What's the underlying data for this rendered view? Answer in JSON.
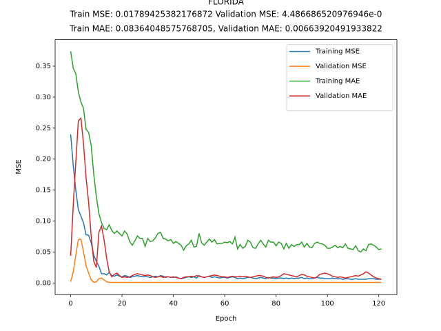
{
  "chart_data": {
    "type": "line",
    "title": "FLORIDA",
    "subtitle": [
      "Train MSE: 0.01789425382176872 Validation MSE: 4.486686520976946e-0",
      "Train MAE: 0.08364048575768705, Validation MAE: 0.00663920491933822"
    ],
    "xlabel": "Epoch",
    "ylabel": "MSE",
    "x": [
      0,
      1,
      2,
      3,
      4,
      5,
      6,
      7,
      8,
      9,
      10,
      11,
      12,
      13,
      14,
      15,
      16,
      17,
      18,
      19,
      20,
      21,
      22,
      23,
      24,
      25,
      26,
      27,
      28,
      29,
      30,
      31,
      32,
      33,
      34,
      35,
      36,
      37,
      38,
      39,
      40,
      41,
      42,
      43,
      44,
      45,
      46,
      47,
      48,
      49,
      50,
      51,
      52,
      53,
      54,
      55,
      56,
      57,
      58,
      59,
      60,
      61,
      62,
      63,
      64,
      65,
      66,
      67,
      68,
      69,
      70,
      71,
      72,
      73,
      74,
      75,
      76,
      77,
      78,
      79,
      80,
      81,
      82,
      83,
      84,
      85,
      86,
      87,
      88,
      89,
      90,
      91,
      92,
      93,
      94,
      95,
      96,
      97,
      98,
      99,
      100,
      101,
      102,
      103,
      104,
      105,
      106,
      107,
      108,
      109,
      110,
      111,
      112,
      113,
      114,
      115,
      116,
      117,
      118,
      119,
      120,
      121
    ],
    "series": [
      {
        "name": "Training MSE",
        "color": "#1f77b4",
        "values": [
          0.24,
          0.19,
          0.15,
          0.118,
          0.108,
          0.097,
          0.078,
          0.077,
          0.065,
          0.045,
          0.035,
          0.027,
          0.015,
          0.015,
          0.013,
          0.017,
          0.012,
          0.011,
          0.013,
          0.011,
          0.01,
          0.012,
          0.011,
          0.009,
          0.01,
          0.011,
          0.012,
          0.011,
          0.01,
          0.011,
          0.01,
          0.009,
          0.01,
          0.011,
          0.01,
          0.012,
          0.011,
          0.009,
          0.01,
          0.009,
          0.009,
          0.01,
          0.008,
          0.007,
          0.008,
          0.009,
          0.01,
          0.009,
          0.01,
          0.008,
          0.012,
          0.01,
          0.009,
          0.01,
          0.011,
          0.009,
          0.01,
          0.009,
          0.008,
          0.009,
          0.009,
          0.008,
          0.009,
          0.01,
          0.009,
          0.007,
          0.008,
          0.007,
          0.008,
          0.009,
          0.009,
          0.008,
          0.007,
          0.008,
          0.009,
          0.008,
          0.007,
          0.009,
          0.008,
          0.008,
          0.007,
          0.008,
          0.008,
          0.007,
          0.008,
          0.007,
          0.008,
          0.007,
          0.008,
          0.008,
          0.009,
          0.007,
          0.008,
          0.007,
          0.007,
          0.008,
          0.009,
          0.008,
          0.008,
          0.007,
          0.007,
          0.007,
          0.008,
          0.007,
          0.007,
          0.007,
          0.006,
          0.007,
          0.007,
          0.006,
          0.006,
          0.007,
          0.006,
          0.006,
          0.006,
          0.006,
          0.007,
          0.007,
          0.007,
          0.006,
          0.006,
          0.006
        ]
      },
      {
        "name": "Validation MSE",
        "color": "#ff7f0e",
        "values": [
          0.002,
          0.018,
          0.045,
          0.07,
          0.071,
          0.05,
          0.028,
          0.016,
          0.005,
          0.001,
          0.002,
          0.007,
          0.008,
          0.005,
          0.002,
          0.001,
          0.001,
          0.001,
          0.001,
          0.001,
          0.001,
          0.001,
          0.001,
          0.001,
          0.001,
          0.001,
          0.001,
          0.001,
          0.001,
          0.001,
          0.001,
          0.001,
          0.001,
          0.001,
          0.001,
          0.001,
          0.001,
          0.001,
          0.001,
          0.001,
          0.001,
          0.001,
          0.001,
          0.001,
          0.001,
          0.001,
          0.001,
          0.001,
          0.001,
          0.001,
          0.001,
          0.001,
          0.001,
          0.001,
          0.001,
          0.001,
          0.001,
          0.001,
          0.001,
          0.001,
          0.001,
          0.001,
          0.001,
          0.001,
          0.001,
          0.001,
          0.001,
          0.001,
          0.001,
          0.001,
          0.001,
          0.001,
          0.001,
          0.001,
          0.001,
          0.001,
          0.001,
          0.001,
          0.001,
          0.001,
          0.001,
          0.001,
          0.001,
          0.001,
          0.001,
          0.001,
          0.001,
          0.001,
          0.001,
          0.001,
          0.001,
          0.001,
          0.001,
          0.001,
          0.001,
          0.001,
          0.001,
          0.001,
          0.001,
          0.001,
          0.001,
          0.001,
          0.001,
          0.001,
          0.001,
          0.001,
          0.001,
          0.001,
          0.001,
          0.001,
          0.001,
          0.001,
          0.001,
          0.001,
          0.001,
          0.001,
          0.001,
          0.001,
          0.001,
          0.001,
          0.001,
          0.001
        ]
      },
      {
        "name": "Training MAE",
        "color": "#2ca02c",
        "values": [
          0.374,
          0.347,
          0.338,
          0.308,
          0.292,
          0.282,
          0.248,
          0.243,
          0.222,
          0.175,
          0.14,
          0.112,
          0.098,
          0.088,
          0.086,
          0.094,
          0.085,
          0.08,
          0.084,
          0.08,
          0.076,
          0.084,
          0.079,
          0.067,
          0.061,
          0.068,
          0.076,
          0.072,
          0.072,
          0.059,
          0.072,
          0.067,
          0.068,
          0.073,
          0.08,
          0.082,
          0.072,
          0.071,
          0.068,
          0.07,
          0.064,
          0.067,
          0.064,
          0.061,
          0.053,
          0.06,
          0.063,
          0.069,
          0.058,
          0.059,
          0.08,
          0.065,
          0.061,
          0.066,
          0.071,
          0.066,
          0.07,
          0.063,
          0.064,
          0.064,
          0.066,
          0.065,
          0.067,
          0.063,
          0.074,
          0.055,
          0.062,
          0.056,
          0.059,
          0.069,
          0.066,
          0.057,
          0.056,
          0.063,
          0.069,
          0.063,
          0.058,
          0.069,
          0.066,
          0.066,
          0.06,
          0.066,
          0.064,
          0.055,
          0.064,
          0.056,
          0.062,
          0.059,
          0.062,
          0.062,
          0.066,
          0.058,
          0.064,
          0.058,
          0.057,
          0.064,
          0.066,
          0.064,
          0.063,
          0.061,
          0.056,
          0.056,
          0.058,
          0.061,
          0.057,
          0.059,
          0.057,
          0.063,
          0.056,
          0.055,
          0.054,
          0.06,
          0.052,
          0.05,
          0.055,
          0.052,
          0.062,
          0.063,
          0.061,
          0.058,
          0.054,
          0.055
        ]
      },
      {
        "name": "Validation MAE",
        "color": "#d62728",
        "values": [
          0.044,
          0.125,
          0.195,
          0.262,
          0.266,
          0.225,
          0.17,
          0.13,
          0.075,
          0.035,
          0.025,
          0.082,
          0.092,
          0.07,
          0.04,
          0.018,
          0.01,
          0.014,
          0.016,
          0.012,
          0.009,
          0.01,
          0.009,
          0.01,
          0.012,
          0.014,
          0.015,
          0.014,
          0.013,
          0.012,
          0.013,
          0.012,
          0.01,
          0.009,
          0.01,
          0.011,
          0.009,
          0.01,
          0.01,
          0.009,
          0.01,
          0.009,
          0.008,
          0.007,
          0.009,
          0.01,
          0.01,
          0.011,
          0.01,
          0.012,
          0.011,
          0.01,
          0.009,
          0.01,
          0.011,
          0.012,
          0.013,
          0.012,
          0.011,
          0.01,
          0.01,
          0.009,
          0.01,
          0.011,
          0.01,
          0.01,
          0.011,
          0.01,
          0.011,
          0.01,
          0.009,
          0.01,
          0.011,
          0.012,
          0.012,
          0.011,
          0.009,
          0.008,
          0.009,
          0.01,
          0.009,
          0.01,
          0.012,
          0.015,
          0.014,
          0.013,
          0.012,
          0.011,
          0.01,
          0.012,
          0.014,
          0.013,
          0.011,
          0.01,
          0.009,
          0.008,
          0.01,
          0.014,
          0.015,
          0.016,
          0.015,
          0.013,
          0.011,
          0.01,
          0.009,
          0.01,
          0.009,
          0.008,
          0.009,
          0.01,
          0.011,
          0.012,
          0.011,
          0.013,
          0.015,
          0.018,
          0.016,
          0.013,
          0.01,
          0.008,
          0.007,
          0.006
        ]
      }
    ],
    "xlim": [
      -6.05,
      127.05
    ],
    "xticks": [
      0,
      20,
      40,
      60,
      80,
      100,
      120
    ],
    "ylim": [
      -0.0187,
      0.3927
    ],
    "yticks": [
      {
        "value": 0,
        "label": "0.00"
      },
      0.05,
      {
        "value": 0.1,
        "label": "0.10"
      },
      0.15,
      {
        "value": 0.2,
        "label": "0.20"
      },
      0.25,
      {
        "value": 0.3,
        "label": "0.30"
      },
      0.35
    ],
    "legend": "upper right"
  }
}
